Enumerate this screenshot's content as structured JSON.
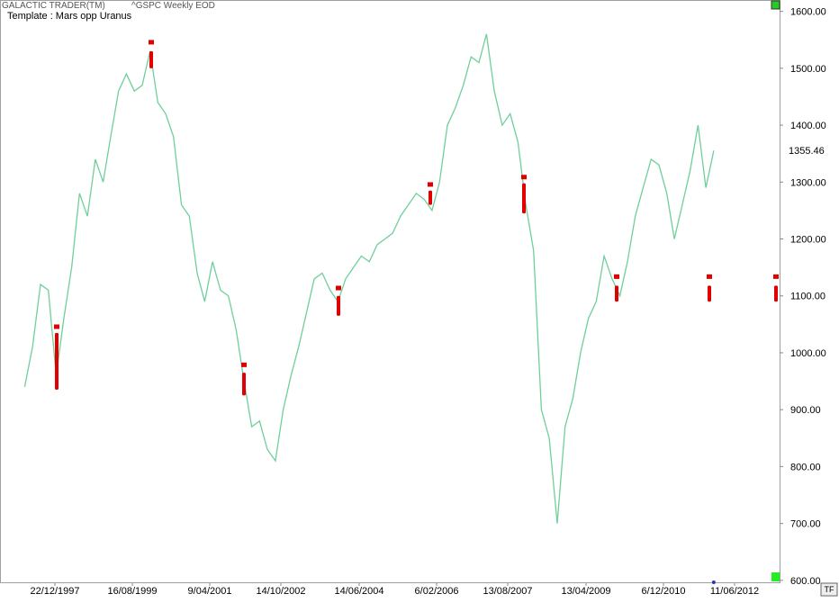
{
  "chart_data": {
    "type": "line",
    "app_title": "GALACTIC TRADER(TM)",
    "subtitle": "^GSPC Weekly EOD",
    "template": "Template : Mars opp Uranus",
    "last_value_label": "1355.46",
    "tf_button": "TF",
    "xlim": [
      "1996-10-21",
      "2013-05-27"
    ],
    "ylim": [
      595,
      1620
    ],
    "yticks": [
      {
        "value": 600,
        "label": "600.00"
      },
      {
        "value": 700,
        "label": "700.00"
      },
      {
        "value": 800,
        "label": "800.00"
      },
      {
        "value": 900,
        "label": "900.00"
      },
      {
        "value": 1000,
        "label": "1000.00"
      },
      {
        "value": 1100,
        "label": "1100.00"
      },
      {
        "value": 1200,
        "label": "1200.00"
      },
      {
        "value": 1300,
        "label": "1300.00"
      },
      {
        "value": 1400,
        "label": "1400.00"
      },
      {
        "value": 1500,
        "label": "1500.00"
      },
      {
        "value": 1600,
        "label": "1600.00"
      }
    ],
    "xticks": [
      {
        "value": "1997-12-22",
        "label": "22/12/1997"
      },
      {
        "value": "1999-08-16",
        "label": "16/08/1999"
      },
      {
        "value": "2001-04-09",
        "label": "9/04/2001"
      },
      {
        "value": "2002-10-14",
        "label": "14/10/2002"
      },
      {
        "value": "2004-06-14",
        "label": "14/06/2004"
      },
      {
        "value": "2006-02-06",
        "label": "6/02/2006"
      },
      {
        "value": "2007-08-13",
        "label": "13/08/2007"
      },
      {
        "value": "2009-04-13",
        "label": "13/04/2009"
      },
      {
        "value": "2010-12-06",
        "label": "6/12/2010"
      },
      {
        "value": "2012-06-11",
        "label": "11/06/2012"
      }
    ],
    "x": [
      "1997-05-01",
      "1997-07-01",
      "1997-09-01",
      "1997-11-01",
      "1998-01-01",
      "1998-03-01",
      "1998-05-01",
      "1998-07-01",
      "1998-09-01",
      "1998-11-01",
      "1999-01-01",
      "1999-03-01",
      "1999-05-01",
      "1999-07-01",
      "1999-09-01",
      "1999-11-01",
      "2000-01-01",
      "2000-03-01",
      "2000-05-01",
      "2000-07-01",
      "2000-09-01",
      "2000-11-01",
      "2001-01-01",
      "2001-03-01",
      "2001-05-01",
      "2001-07-01",
      "2001-09-01",
      "2001-11-01",
      "2002-01-01",
      "2002-03-01",
      "2002-05-01",
      "2002-07-01",
      "2002-09-01",
      "2002-11-01",
      "2003-01-01",
      "2003-03-01",
      "2003-05-01",
      "2003-07-01",
      "2003-09-01",
      "2003-11-01",
      "2004-01-01",
      "2004-03-01",
      "2004-05-01",
      "2004-07-01",
      "2004-09-01",
      "2004-11-01",
      "2005-01-01",
      "2005-03-01",
      "2005-05-01",
      "2005-07-01",
      "2005-09-01",
      "2005-11-01",
      "2006-01-01",
      "2006-03-01",
      "2006-05-01",
      "2006-07-01",
      "2006-09-01",
      "2006-11-01",
      "2007-01-01",
      "2007-03-01",
      "2007-05-01",
      "2007-07-01",
      "2007-09-01",
      "2007-11-01",
      "2008-01-01",
      "2008-03-01",
      "2008-05-01",
      "2008-07-01",
      "2008-09-01",
      "2008-11-01",
      "2009-01-01",
      "2009-03-01",
      "2009-05-01",
      "2009-07-01",
      "2009-09-01",
      "2009-11-01",
      "2010-01-01",
      "2010-03-01",
      "2010-05-01",
      "2010-07-01",
      "2010-09-01",
      "2010-11-01",
      "2011-01-01",
      "2011-03-01",
      "2011-05-01",
      "2011-07-01",
      "2011-09-01",
      "2011-11-01",
      "2012-01-01"
    ],
    "series": [
      {
        "color": "#6fcf9a",
        "values": [
          940,
          1010,
          1120,
          1110,
          960,
          1060,
          1150,
          1280,
          1240,
          1340,
          1300,
          1380,
          1460,
          1490,
          1460,
          1470,
          1530,
          1440,
          1420,
          1380,
          1260,
          1240,
          1140,
          1090,
          1160,
          1110,
          1100,
          1040,
          950,
          870,
          880,
          830,
          810,
          900,
          960,
          1010,
          1070,
          1130,
          1140,
          1110,
          1090,
          1130,
          1150,
          1170,
          1160,
          1190,
          1200,
          1210,
          1240,
          1260,
          1280,
          1270,
          1250,
          1300,
          1400,
          1430,
          1470,
          1520,
          1510,
          1560,
          1460,
          1400,
          1420,
          1370,
          1260,
          1180,
          900,
          850,
          700,
          870,
          920,
          1000,
          1060,
          1090,
          1170,
          1130,
          1100,
          1160,
          1240,
          1290,
          1340,
          1330,
          1280,
          1200,
          1260,
          1320,
          1400,
          1290,
          1355.46
        ]
      }
    ],
    "events": {
      "color": "#e00000",
      "x": [
        "1998-01-05",
        "2000-01-10",
        "2001-12-31",
        "2004-01-05",
        "2005-12-19",
        "2007-12-17",
        "2009-12-07",
        "2011-11-28",
        "2013-04-29"
      ],
      "top": [
        1045,
        1545,
        978,
        1113,
        1295,
        1308,
        1133,
        1133,
        1133
      ],
      "high": [
        1035,
        1530,
        965,
        1100,
        1285,
        1298,
        1118,
        1118,
        1118
      ],
      "low": [
        935,
        1500,
        925,
        1065,
        1260,
        1245,
        1090,
        1090,
        1090
      ]
    }
  }
}
